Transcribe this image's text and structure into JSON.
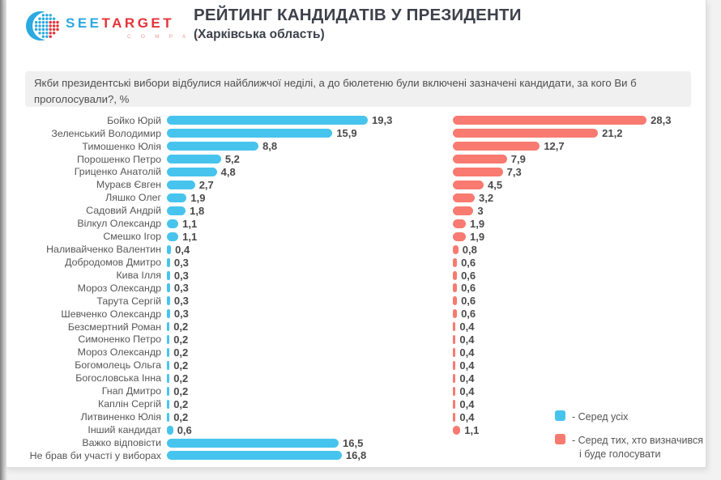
{
  "page": {
    "logo": {
      "part1": "SEE",
      "part2": "TARGET",
      "subtext": "C O M P A N Y"
    },
    "header": {
      "title": "РЕЙТИНГ КАНДИДАТІВ У ПРЕЗИДЕНТИ",
      "subtitle": "(Харківська область)"
    },
    "question": "Якби президентські вибори відбулися найближчої неділі, а до бюлетеню були включені зазначені кандидати, за кого Ви б проголосували?, %"
  },
  "legend": {
    "all": "- Серед усіх",
    "decided_line1": "- Серед тих, хто визначився",
    "decided_line2": "і буде голосувати"
  },
  "colors": {
    "blue": "#47C4EE",
    "red": "#F87A70",
    "logo_blue": "#2BA9E1",
    "logo_red": "#E53238",
    "title_text": "#3D414B"
  },
  "chart_data": {
    "type": "bar",
    "orientation": "horizontal",
    "title": "РЕЙТИНГ КАНДИДАТІВ У ПРЕЗИДЕНТИ (Харківська область)",
    "subtitle_question": "Якби президентські вибори відбулися найближчої неділі, а до бюлетеню були включені зазначені кандидати, за кого Ви б проголосували?, %",
    "units": "%",
    "grid": false,
    "legend_position": "bottom-right",
    "value_labels_shown": true,
    "xlim": [
      0,
      28.3
    ],
    "categories": [
      "Бойко Юрій",
      "Зеленський Володимир",
      "Тимошенко Юлія",
      "Порошенко Петро",
      "Гриценко Анатолій",
      "Мураєв Євген",
      "Ляшко Олег",
      "Садовий Андрій",
      "Вілкул Олександр",
      "Смешко Ігор",
      "Наливайченко Валентин",
      "Добродомов Дмитро",
      "Кива Ілля",
      "Мороз Олександр",
      "Тарута Сергій",
      "Шевченко Олександр",
      "Безсмертний Роман",
      "Симоненко Петро",
      "Мороз Олександр",
      "Богомолець Ольга",
      "Богословська Інна",
      "Гнап Дмитро",
      "Каплін Сергій",
      "Литвиненко Юлія",
      "Інший кандидат",
      "Важко відповісти",
      "Не брав би участі у виборах"
    ],
    "series": [
      {
        "name": "Серед усіх",
        "color": "#47C4EE",
        "values": [
          19.3,
          15.9,
          8.8,
          5.2,
          4.8,
          2.7,
          1.9,
          1.8,
          1.1,
          1.1,
          0.4,
          0.3,
          0.3,
          0.3,
          0.3,
          0.3,
          0.2,
          0.2,
          0.2,
          0.2,
          0.2,
          0.2,
          0.2,
          0.2,
          0.6,
          16.5,
          16.8
        ],
        "labels": [
          "19,3",
          "15,9",
          "8,8",
          "5,2",
          "4,8",
          "2,7",
          "1,9",
          "1,8",
          "1,1",
          "1,1",
          "0,4",
          "0,3",
          "0,3",
          "0,3",
          "0,3",
          "0,3",
          "0,2",
          "0,2",
          "0,2",
          "0,2",
          "0,2",
          "0,2",
          "0,2",
          "0,2",
          "0,6",
          "16,5",
          "16,8"
        ]
      },
      {
        "name": "Серед тих, хто визначився і буде голосувати",
        "color": "#F87A70",
        "values": [
          28.3,
          21.2,
          12.7,
          7.9,
          7.3,
          4.5,
          3.2,
          3,
          1.9,
          1.9,
          0.8,
          0.6,
          0.6,
          0.6,
          0.6,
          0.6,
          0.4,
          0.4,
          0.4,
          0.4,
          0.4,
          0.4,
          0.4,
          0.4,
          1.1,
          null,
          null
        ],
        "labels": [
          "28,3",
          "21,2",
          "12,7",
          "7,9",
          "7,3",
          "4,5",
          "3,2",
          "3",
          "1,9",
          "1,9",
          "0,8",
          "0,6",
          "0,6",
          "0,6",
          "0,6",
          "0,6",
          "0,4",
          "0,4",
          "0,4",
          "0,4",
          "0,4",
          "0,4",
          "0,4",
          "0,4",
          "1,1",
          "",
          ""
        ]
      }
    ]
  }
}
